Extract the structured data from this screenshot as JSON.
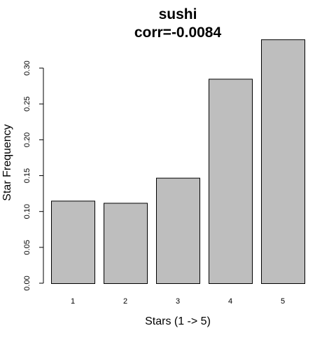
{
  "chart_data": {
    "type": "bar",
    "title": "sushi",
    "subtitle": "corr=-0.0084",
    "xlabel": "Stars (1 -> 5)",
    "ylabel": "Star Frequency",
    "categories": [
      "1",
      "2",
      "3",
      "4",
      "5"
    ],
    "values": [
      0.115,
      0.112,
      0.147,
      0.285,
      0.34
    ],
    "yticks": [
      "0.00",
      "0.05",
      "0.10",
      "0.15",
      "0.20",
      "0.25",
      "0.30"
    ],
    "ylim": [
      0,
      0.34
    ],
    "grid": false,
    "legend": "none",
    "colors": {
      "bar_fill": "#bebebe",
      "bar_stroke": "#000000",
      "text": "#000000",
      "background": "#ffffff"
    }
  }
}
